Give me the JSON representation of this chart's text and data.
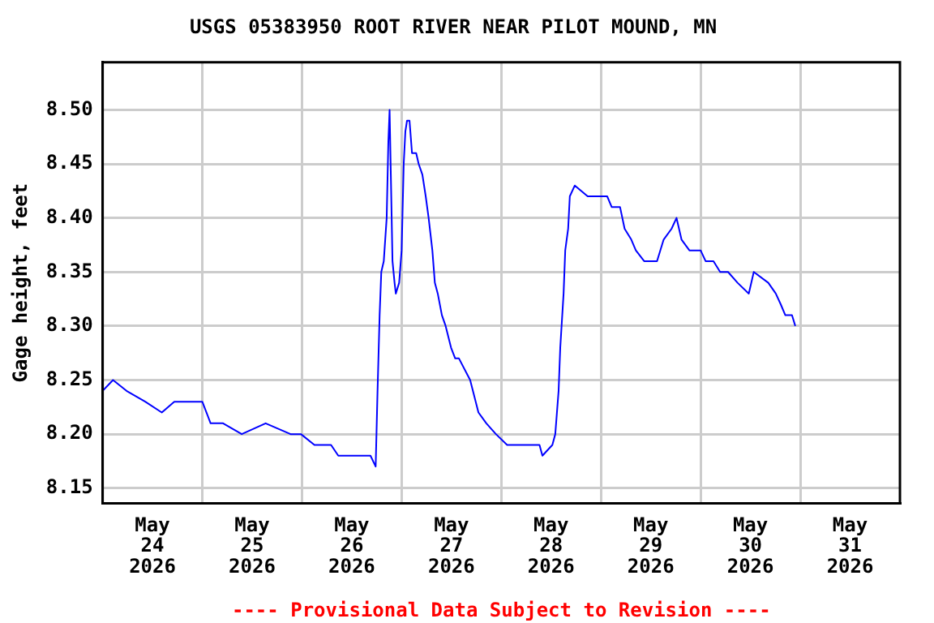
{
  "chart_data": {
    "type": "line",
    "title": "USGS 05383950 ROOT RIVER NEAR PILOT MOUND, MN",
    "ylabel": "Gage height, feet",
    "annotations": [
      "---- Provisional Data Subject to Revision ----"
    ],
    "xlim": [
      "2026-05-24T00:00",
      "2026-06-01T00:00"
    ],
    "xticks": [
      {
        "value": "2026-05-24T12:00",
        "label": "May 24 2026"
      },
      {
        "value": "2026-05-25T00:00",
        "label": null
      },
      {
        "value": "2026-05-25T12:00",
        "label": "May 25 2026"
      },
      {
        "value": "2026-05-26T00:00",
        "label": null
      },
      {
        "value": "2026-05-26T12:00",
        "label": "May 26 2026"
      },
      {
        "value": "2026-05-27T00:00",
        "label": null
      },
      {
        "value": "2026-05-27T12:00",
        "label": "May 27 2026"
      },
      {
        "value": "2026-05-28T00:00",
        "label": null
      },
      {
        "value": "2026-05-28T12:00",
        "label": "May 28 2026"
      },
      {
        "value": "2026-05-29T00:00",
        "label": null
      },
      {
        "value": "2026-05-29T12:00",
        "label": "May 29 2026"
      },
      {
        "value": "2026-05-30T00:00",
        "label": null
      },
      {
        "value": "2026-05-30T12:00",
        "label": "May 30 2026"
      },
      {
        "value": "2026-05-31T00:00",
        "label": null
      },
      {
        "value": "2026-05-31T12:00",
        "label": "May 31 2026"
      }
    ],
    "ylim": [
      8.136,
      8.544
    ],
    "yticks": [
      {
        "value": 8.15,
        "label": "8.15"
      },
      {
        "value": 8.2,
        "label": "8.20"
      },
      {
        "value": 8.25,
        "label": "8.25"
      },
      {
        "value": 8.3,
        "label": "8.30"
      },
      {
        "value": 8.35,
        "label": "8.35"
      },
      {
        "value": 8.4,
        "label": "8.40"
      },
      {
        "value": 8.45,
        "label": "8.45"
      },
      {
        "value": 8.5,
        "label": "8.50"
      }
    ],
    "grid": true,
    "legend": false,
    "marker": "none",
    "line_style": "solid",
    "series": [
      {
        "color": "#0000ff",
        "x": [
          "2026-05-24T00:00",
          "2026-05-24T02:30",
          "2026-05-24T05:45",
          "2026-05-24T10:15",
          "2026-05-24T14:15",
          "2026-05-24T17:15",
          "2026-05-25T00:00",
          "2026-05-25T02:00",
          "2026-05-25T05:00",
          "2026-05-25T09:30",
          "2026-05-25T15:15",
          "2026-05-25T21:15",
          "2026-05-25T23:45",
          "2026-05-26T03:00",
          "2026-05-26T07:00",
          "2026-05-26T08:45",
          "2026-05-26T12:30",
          "2026-05-26T16:30",
          "2026-05-26T17:45",
          "2026-05-26T18:12",
          "2026-05-26T18:42",
          "2026-05-26T19:06",
          "2026-05-26T19:42",
          "2026-05-26T20:24",
          "2026-05-26T20:48",
          "2026-05-26T21:06",
          "2026-05-26T21:24",
          "2026-05-26T21:48",
          "2026-05-26T22:18",
          "2026-05-26T22:36",
          "2026-05-26T23:24",
          "2026-05-27T00:00",
          "2026-05-27T00:30",
          "2026-05-27T00:54",
          "2026-05-27T01:18",
          "2026-05-27T01:54",
          "2026-05-27T02:30",
          "2026-05-27T03:30",
          "2026-05-27T04:06",
          "2026-05-27T05:00",
          "2026-05-27T05:48",
          "2026-05-27T06:30",
          "2026-05-27T07:24",
          "2026-05-27T08:00",
          "2026-05-27T08:42",
          "2026-05-27T09:42",
          "2026-05-27T10:36",
          "2026-05-27T11:54",
          "2026-05-27T12:54",
          "2026-05-27T13:48",
          "2026-05-27T16:30",
          "2026-05-27T18:30",
          "2026-05-27T20:24",
          "2026-05-27T22:42",
          "2026-05-28T01:24",
          "2026-05-28T05:18",
          "2026-05-28T09:12",
          "2026-05-28T09:54",
          "2026-05-28T12:18",
          "2026-05-28T13:00",
          "2026-05-28T13:48",
          "2026-05-28T14:12",
          "2026-05-28T15:00",
          "2026-05-28T15:24",
          "2026-05-28T16:06",
          "2026-05-28T16:30",
          "2026-05-28T17:42",
          "2026-05-28T20:48",
          "2026-05-28T23:30",
          "2026-05-29T01:30",
          "2026-05-29T02:36",
          "2026-05-29T04:36",
          "2026-05-29T05:42",
          "2026-05-29T07:18",
          "2026-05-29T08:24",
          "2026-05-29T10:24",
          "2026-05-29T13:30",
          "2026-05-29T15:06",
          "2026-05-29T17:00",
          "2026-05-29T18:12",
          "2026-05-29T19:24",
          "2026-05-29T21:18",
          "2026-05-30T00:00",
          "2026-05-30T01:12",
          "2026-05-30T03:06",
          "2026-05-30T04:42",
          "2026-05-30T06:36",
          "2026-05-30T08:54",
          "2026-05-30T11:36",
          "2026-05-30T12:48",
          "2026-05-30T16:18",
          "2026-05-30T18:06",
          "2026-05-30T19:18",
          "2026-05-30T20:24",
          "2026-05-30T22:00",
          "2026-05-30T22:48"
        ],
        "values": [
          8.24,
          8.25,
          8.24,
          8.23,
          8.22,
          8.23,
          8.23,
          8.21,
          8.21,
          8.2,
          8.21,
          8.2,
          8.2,
          8.19,
          8.19,
          8.18,
          8.18,
          8.18,
          8.17,
          8.24,
          8.31,
          8.35,
          8.36,
          8.4,
          8.47,
          8.5,
          8.44,
          8.36,
          8.34,
          8.33,
          8.34,
          8.37,
          8.45,
          8.48,
          8.49,
          8.49,
          8.46,
          8.46,
          8.45,
          8.44,
          8.42,
          8.4,
          8.37,
          8.34,
          8.33,
          8.31,
          8.3,
          8.28,
          8.27,
          8.27,
          8.25,
          8.22,
          8.21,
          8.2,
          8.19,
          8.19,
          8.19,
          8.18,
          8.19,
          8.2,
          8.24,
          8.28,
          8.33,
          8.37,
          8.39,
          8.42,
          8.43,
          8.42,
          8.42,
          8.42,
          8.41,
          8.41,
          8.39,
          8.38,
          8.37,
          8.36,
          8.36,
          8.38,
          8.39,
          8.4,
          8.38,
          8.37,
          8.37,
          8.36,
          8.36,
          8.35,
          8.35,
          8.34,
          8.33,
          8.35,
          8.34,
          8.33,
          8.32,
          8.31,
          8.31,
          8.3
        ]
      }
    ]
  }
}
